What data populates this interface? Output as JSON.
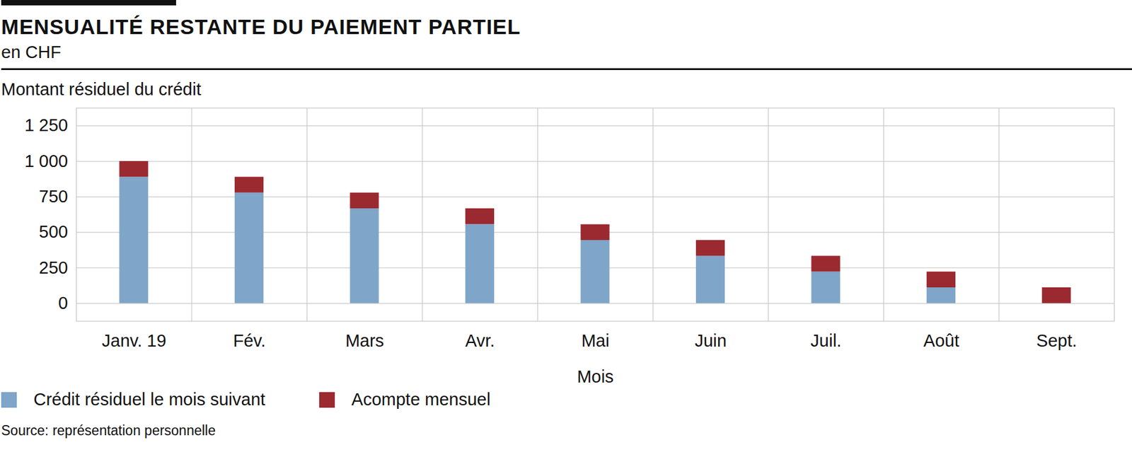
{
  "chart_data": {
    "type": "bar",
    "title": "MENSUALITÉ RESTANTE DU PAIEMENT PARTIEL",
    "subtitle": "en CHF",
    "y_label": "Montant résiduel du crédit",
    "x_label": "Mois",
    "source": "Source: représentation personnelle",
    "categories": [
      "Janv. 19",
      "Fév.",
      "Mars",
      "Avr.",
      "Mai",
      "Juin",
      "Juil.",
      "Août",
      "Sept."
    ],
    "series": [
      {
        "name": "Crédit résiduel le mois suivant",
        "color": "#7fa5c8",
        "values": [
          889,
          778,
          667,
          556,
          444,
          333,
          222,
          111,
          0
        ]
      },
      {
        "name": "Acompte mensuel",
        "color": "#9a2930",
        "values": [
          111,
          111,
          111,
          111,
          111,
          111,
          111,
          111,
          111
        ]
      }
    ],
    "stacked": true,
    "ylim": [
      -125,
      1375
    ],
    "yticks": [
      0,
      250,
      500,
      750,
      {
        "value": 1000,
        "label": "1 000"
      },
      {
        "value": 1250,
        "label": "1 250"
      }
    ],
    "grid": true,
    "legend": "bottom"
  }
}
